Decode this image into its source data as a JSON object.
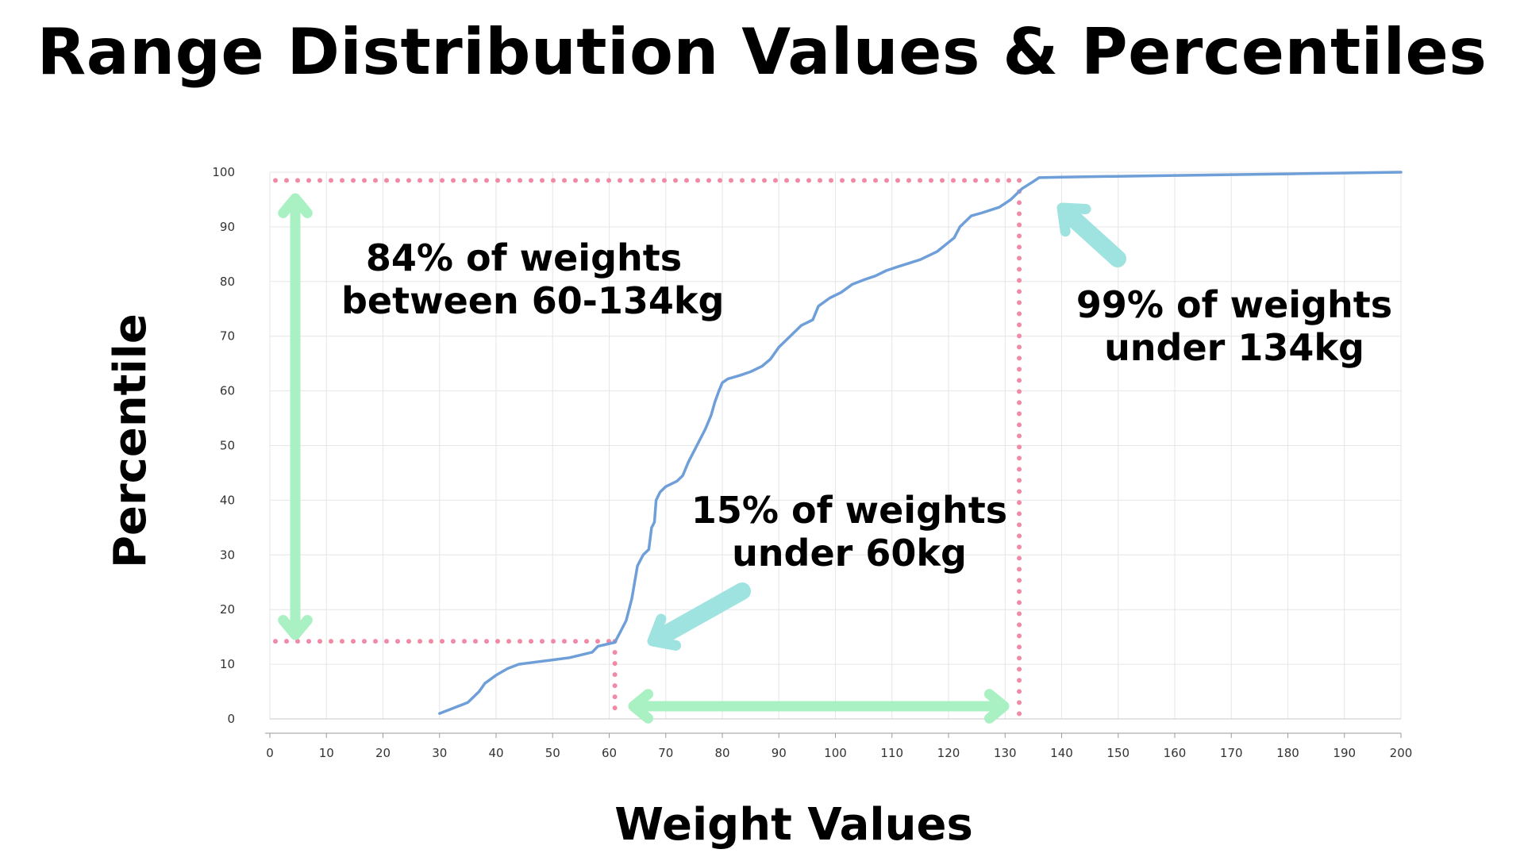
{
  "title": "Range Distribution Values & Percentiles",
  "chart_data": {
    "type": "line",
    "title": "Range Distribution Values & Percentiles",
    "xlabel": "Weight Values",
    "ylabel": "Percentile",
    "xlim": [
      0,
      200
    ],
    "ylim": [
      0,
      100
    ],
    "grid": true,
    "x_ticks": [
      0,
      10,
      20,
      30,
      40,
      50,
      60,
      70,
      80,
      90,
      100,
      110,
      120,
      130,
      140,
      150,
      160,
      170,
      180,
      190,
      200
    ],
    "y_ticks": [
      0,
      10,
      20,
      30,
      40,
      50,
      60,
      70,
      80,
      90,
      100
    ],
    "series": [
      {
        "color": "#6f9fd8",
        "points": [
          [
            30,
            1
          ],
          [
            35,
            3
          ],
          [
            37,
            5
          ],
          [
            38,
            6.5
          ],
          [
            40,
            8
          ],
          [
            42,
            9.2
          ],
          [
            44,
            10
          ],
          [
            47,
            10.4
          ],
          [
            50,
            10.8
          ],
          [
            53,
            11.2
          ],
          [
            57,
            12.2
          ],
          [
            58,
            13.3
          ],
          [
            61,
            14
          ],
          [
            62,
            16
          ],
          [
            63,
            18
          ],
          [
            64,
            22
          ],
          [
            65,
            28
          ],
          [
            66,
            30
          ],
          [
            67,
            31
          ],
          [
            67.5,
            35
          ],
          [
            68,
            36
          ],
          [
            68.3,
            40
          ],
          [
            69,
            41.5
          ],
          [
            70,
            42.5
          ],
          [
            72,
            43.5
          ],
          [
            73,
            44.5
          ],
          [
            74,
            47
          ],
          [
            75,
            49
          ],
          [
            76,
            51
          ],
          [
            77,
            53
          ],
          [
            78,
            55.5
          ],
          [
            78.7,
            58
          ],
          [
            79.4,
            60
          ],
          [
            80,
            61.5
          ],
          [
            81,
            62.2
          ],
          [
            83,
            62.8
          ],
          [
            85,
            63.5
          ],
          [
            87,
            64.5
          ],
          [
            88.5,
            65.8
          ],
          [
            90,
            68
          ],
          [
            92,
            70
          ],
          [
            94,
            72
          ],
          [
            96,
            73
          ],
          [
            97,
            75.5
          ],
          [
            99,
            77
          ],
          [
            101,
            78
          ],
          [
            103,
            79.5
          ],
          [
            105,
            80.3
          ],
          [
            107,
            81
          ],
          [
            109,
            82
          ],
          [
            111,
            82.7
          ],
          [
            115,
            84
          ],
          [
            118,
            85.5
          ],
          [
            121,
            88
          ],
          [
            122,
            90
          ],
          [
            124,
            92
          ],
          [
            126,
            92.6
          ],
          [
            129,
            93.6
          ],
          [
            131,
            95
          ],
          [
            133,
            97
          ],
          [
            135,
            98.3
          ],
          [
            136,
            99
          ],
          [
            140,
            99.1
          ],
          [
            160,
            99.4
          ],
          [
            180,
            99.7
          ],
          [
            200,
            100
          ]
        ]
      }
    ],
    "annotations": [
      "84% of weights between 60-134kg",
      "99% of weights under 134kg",
      "15% of weights under 60kg"
    ],
    "reference_lines": {
      "color": "#f08aa6",
      "horizontal_y": [
        98.5,
        14.2
      ],
      "vertical_x": [
        61,
        132.5
      ]
    },
    "arrow_color_green": "#a9f0c2",
    "arrow_color_teal": "#9fe3e0"
  },
  "annotations": {
    "range": {
      "line1": "84% of weights",
      "line2": "between 60-134kg"
    },
    "upper": {
      "line1": "99% of weights",
      "line2": "under 134kg"
    },
    "lower": {
      "line1": "15% of weights",
      "line2": "under 60kg"
    }
  }
}
